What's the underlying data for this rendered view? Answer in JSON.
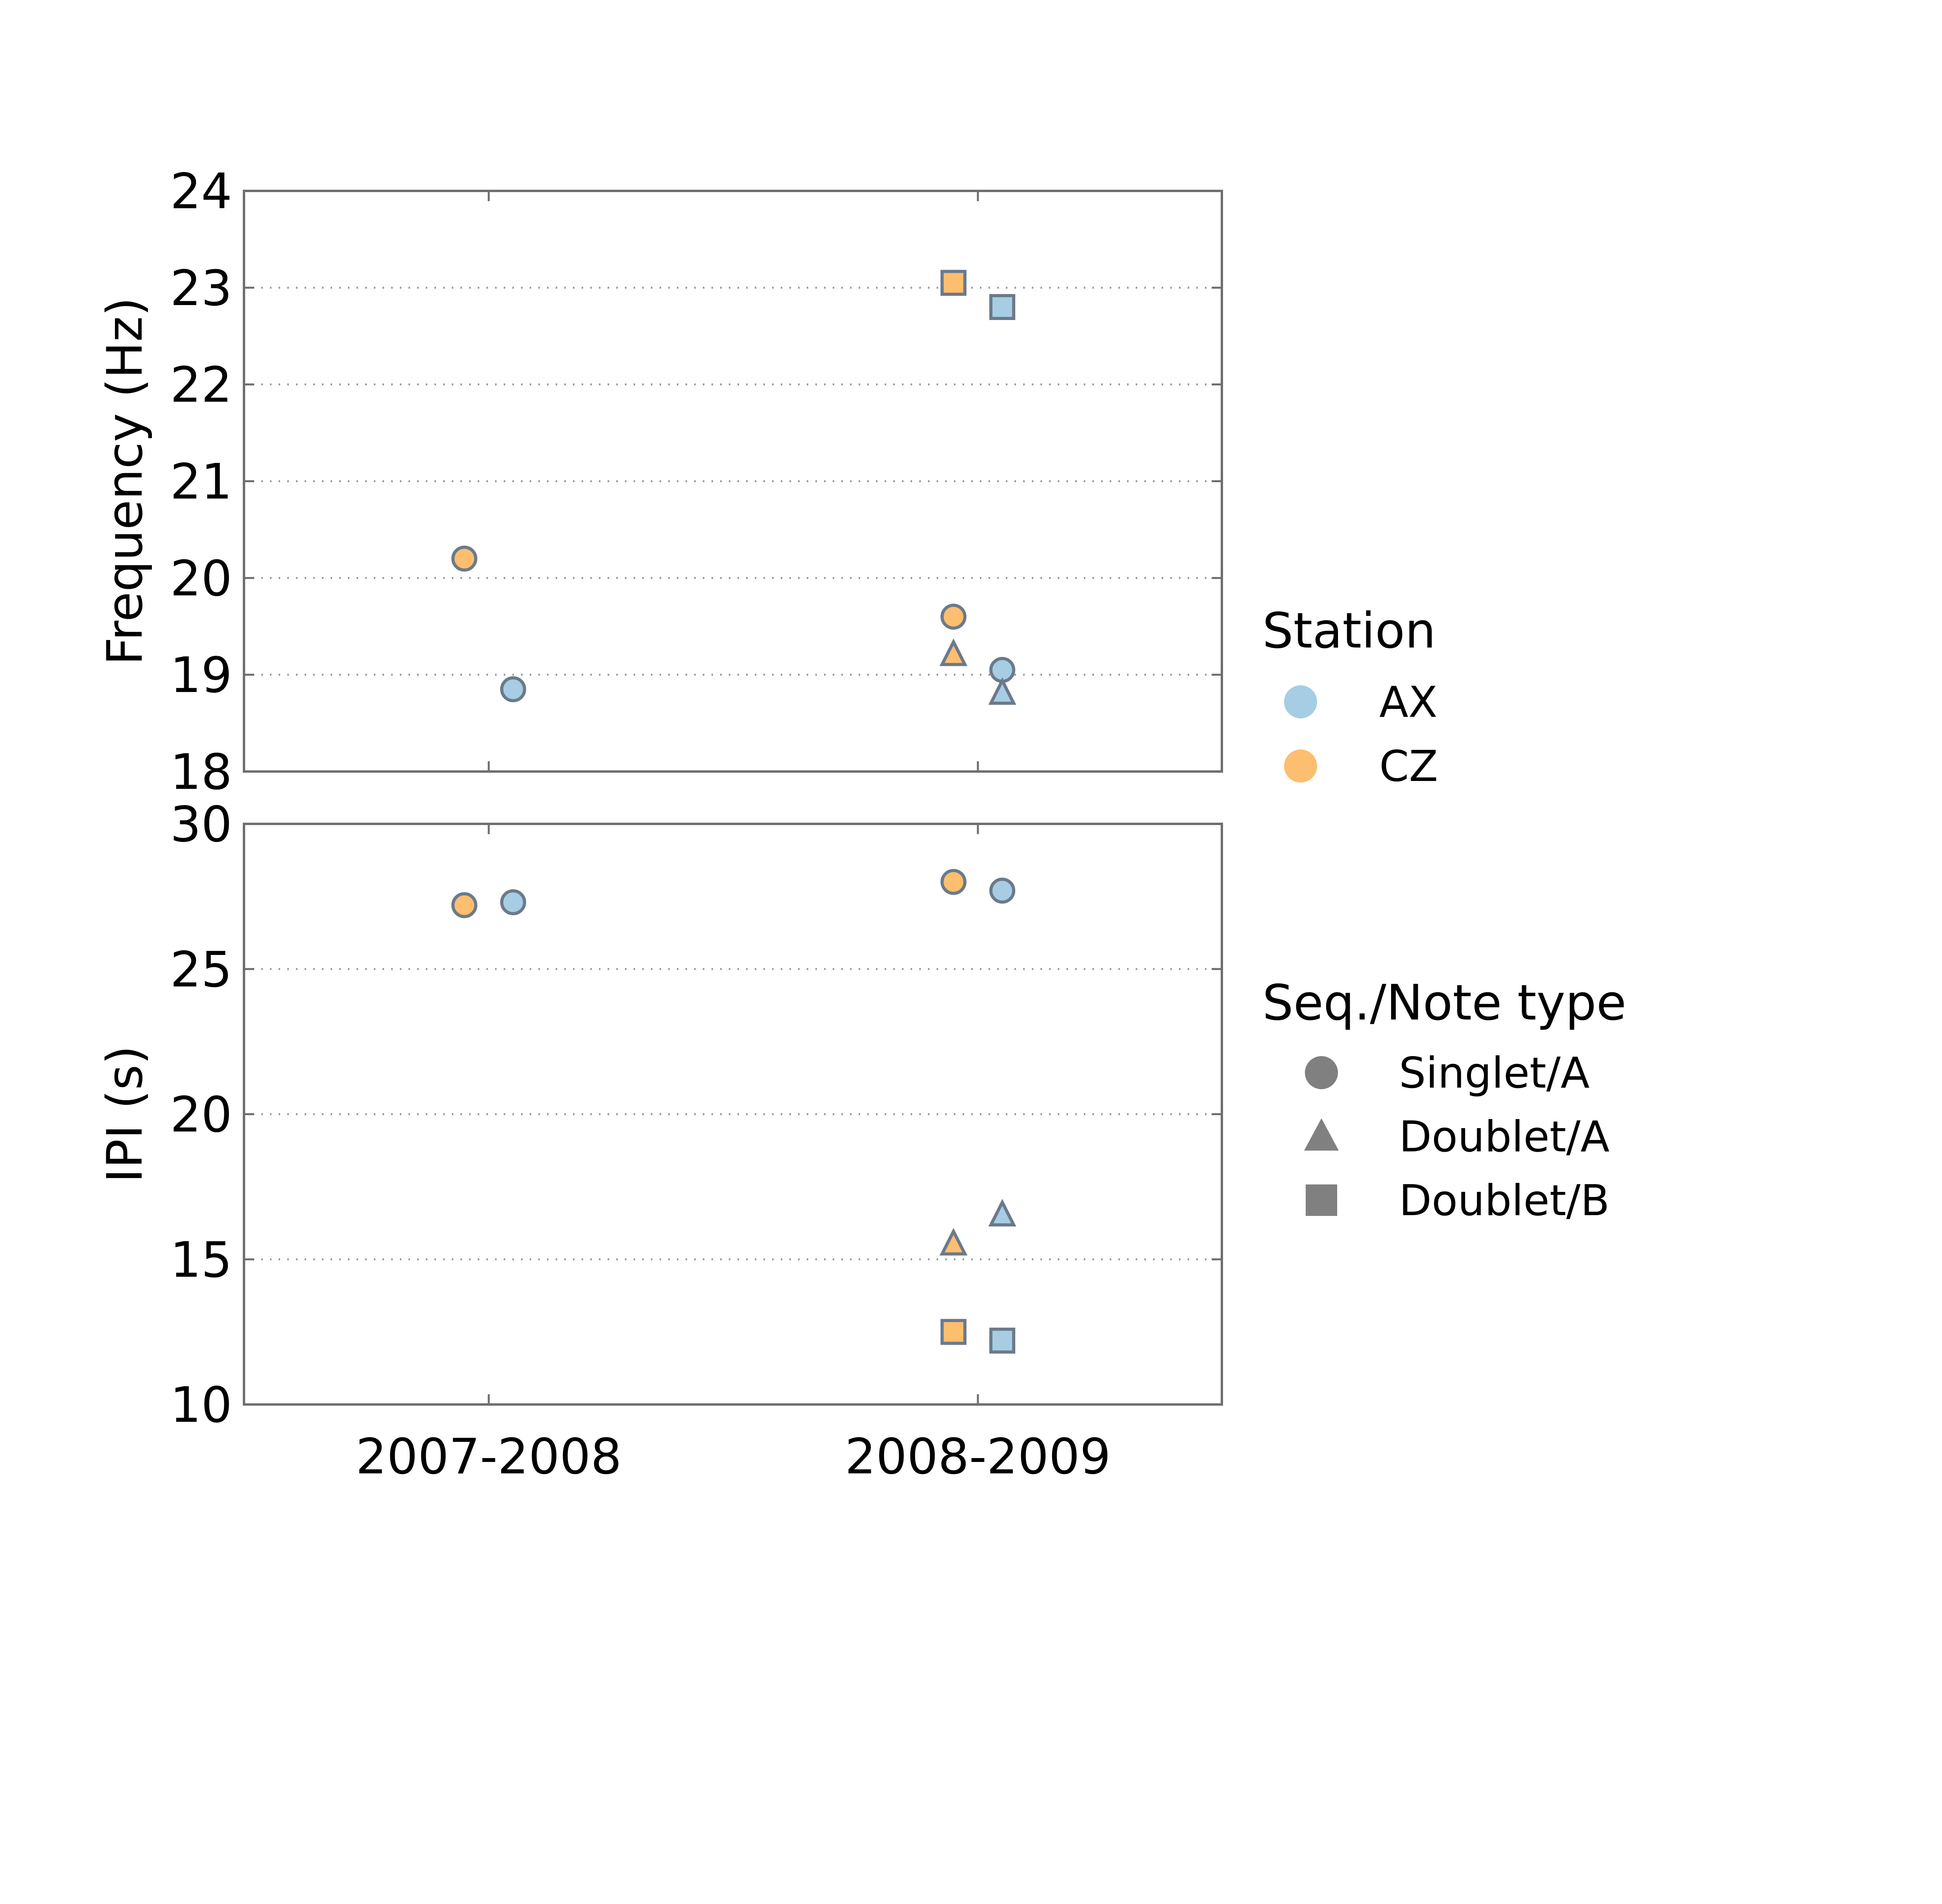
{
  "chart_data": {
    "type": "scatter",
    "categories": [
      "2007-2008",
      "2008-2009"
    ],
    "colors": {
      "AX": "#a6cde3",
      "CZ": "#fdbe6f",
      "marker_edge": "#6b7a8a",
      "legend_shape": "#808080"
    },
    "panels": [
      {
        "name": "frequency",
        "ylabel": "Frequency (Hz)",
        "ylim": [
          18,
          24
        ],
        "yticks": [
          "18",
          "19",
          "20",
          "21",
          "22",
          "23",
          "24"
        ],
        "grid": "dotted horizontal",
        "points": [
          {
            "category": "2007-2008",
            "station": "CZ",
            "type": "Singlet/A",
            "y": 20.2
          },
          {
            "category": "2007-2008",
            "station": "AX",
            "type": "Singlet/A",
            "y": 18.85
          },
          {
            "category": "2008-2009",
            "station": "CZ",
            "type": "Doublet/B",
            "y": 23.05
          },
          {
            "category": "2008-2009",
            "station": "AX",
            "type": "Doublet/B",
            "y": 22.8
          },
          {
            "category": "2008-2009",
            "station": "CZ",
            "type": "Singlet/A",
            "y": 19.6
          },
          {
            "category": "2008-2009",
            "station": "CZ",
            "type": "Doublet/A",
            "y": 19.2
          },
          {
            "category": "2008-2009",
            "station": "AX",
            "type": "Singlet/A",
            "y": 19.05
          },
          {
            "category": "2008-2009",
            "station": "AX",
            "type": "Doublet/A",
            "y": 18.8
          }
        ]
      },
      {
        "name": "ipi",
        "ylabel": "IPI (s)",
        "ylim": [
          10,
          30
        ],
        "yticks": [
          "10",
          "15",
          "20",
          "25",
          "30"
        ],
        "grid": "dotted horizontal",
        "points": [
          {
            "category": "2007-2008",
            "station": "CZ",
            "type": "Singlet/A",
            "y": 27.2
          },
          {
            "category": "2007-2008",
            "station": "AX",
            "type": "Singlet/A",
            "y": 27.3
          },
          {
            "category": "2008-2009",
            "station": "CZ",
            "type": "Singlet/A",
            "y": 28.0
          },
          {
            "category": "2008-2009",
            "station": "AX",
            "type": "Singlet/A",
            "y": 27.7
          },
          {
            "category": "2008-2009",
            "station": "CZ",
            "type": "Doublet/A",
            "y": 15.5
          },
          {
            "category": "2008-2009",
            "station": "AX",
            "type": "Doublet/A",
            "y": 16.5
          },
          {
            "category": "2008-2009",
            "station": "CZ",
            "type": "Doublet/B",
            "y": 12.5
          },
          {
            "category": "2008-2009",
            "station": "AX",
            "type": "Doublet/B",
            "y": 12.2
          }
        ]
      }
    ],
    "legends": [
      {
        "title": "Station",
        "placement": "right-upper",
        "entries": [
          {
            "label": "AX",
            "marker": "circle",
            "color": "#a6cde3"
          },
          {
            "label": "CZ",
            "marker": "circle",
            "color": "#fdbe6f"
          }
        ]
      },
      {
        "title": "Seq./Note type",
        "placement": "right-lower",
        "entries": [
          {
            "label": "Singlet/A",
            "marker": "circle",
            "color": "#808080"
          },
          {
            "label": "Doublet/A",
            "marker": "triangle",
            "color": "#808080"
          },
          {
            "label": "Doublet/B",
            "marker": "square",
            "color": "#808080"
          }
        ]
      }
    ]
  }
}
